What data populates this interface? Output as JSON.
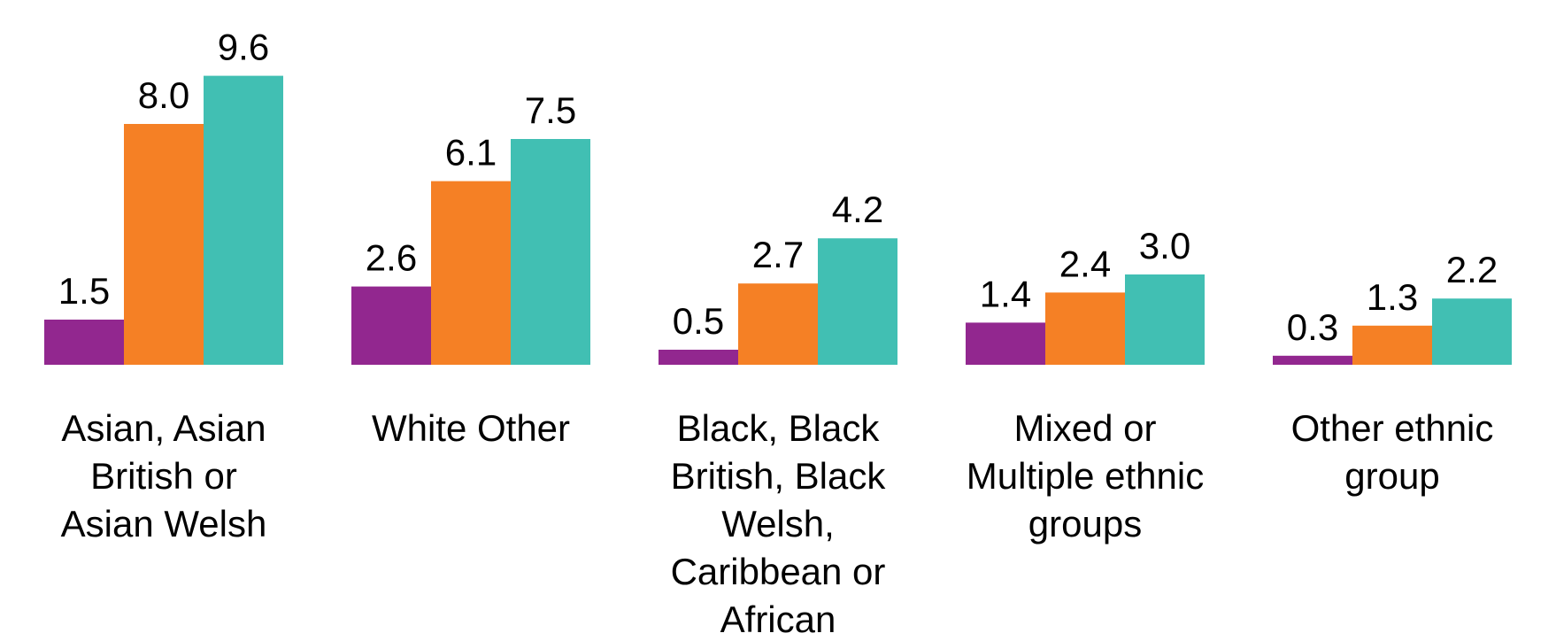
{
  "chart_data": {
    "type": "bar",
    "categories": [
      [
        "Asian, Asian",
        "British or",
        "Asian Welsh"
      ],
      [
        "White Other"
      ],
      [
        "Black, Black",
        "British, Black",
        "Welsh,",
        "Caribbean or",
        "African"
      ],
      [
        "Mixed or",
        "Multiple ethnic",
        "groups"
      ],
      [
        "Other ethnic",
        "group"
      ]
    ],
    "series": [
      {
        "color": "#92278f",
        "values": [
          1.5,
          2.6,
          0.5,
          1.4,
          0.3
        ],
        "labels": [
          "1.5",
          "2.6",
          "0.5",
          "1.4",
          "0.3"
        ]
      },
      {
        "color": "#f58025",
        "values": [
          8.0,
          6.1,
          2.7,
          2.4,
          1.3
        ],
        "labels": [
          "8.0",
          "6.1",
          "2.7",
          "2.4",
          "1.3"
        ]
      },
      {
        "color": "#41bfb3",
        "values": [
          9.6,
          7.5,
          4.2,
          3.0,
          2.2
        ],
        "labels": [
          "9.6",
          "7.5",
          "4.2",
          "3.0",
          "2.2"
        ]
      }
    ],
    "ylim": [
      0,
      10
    ],
    "grid": false,
    "legend": "none",
    "data_labels": true
  }
}
